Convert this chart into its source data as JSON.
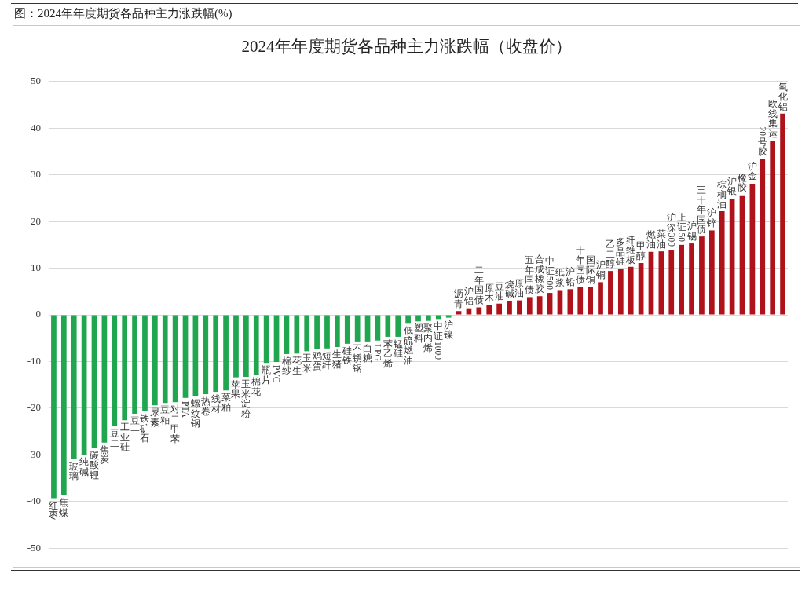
{
  "chart_data": {
    "type": "bar",
    "title": "2024年年度期货各品种主力涨跌幅（收盘价）",
    "annotations": [
      "图：2024年年度期货各品种主力涨跌幅(%)"
    ],
    "categories": [
      "红枣",
      "焦煤",
      "玻璃",
      "纯碱",
      "碳酸锂",
      "焦炭",
      "豆二",
      "工业硅",
      "豆一",
      "铁矿石",
      "尿素",
      "豆粕",
      "对二甲苯",
      "PTA",
      "螺纹钢",
      "热卷",
      "线材",
      "菜粕",
      "苹果",
      "玉米淀粉",
      "棉花",
      "瓶片",
      "PVC",
      "棉纱",
      "花生",
      "玉米",
      "鸡蛋",
      "短纤",
      "生猪",
      "硅铁",
      "不锈钢",
      "白糖",
      "LPG",
      "苯乙烯",
      "锰硅",
      "低硫燃油",
      "塑料",
      "聚丙烯",
      "中证1000",
      "沪镍",
      "沥青",
      "沪铝",
      "二年国债",
      "原木",
      "豆油",
      "烧碱",
      "原油",
      "五年国债",
      "合成橡胶",
      "中证500",
      "纸浆",
      "沪铅",
      "十年国债",
      "国际铜",
      "沪铜",
      "乙二醇",
      "多晶硅",
      "纤维板",
      "甲醇",
      "燃油",
      "菜油",
      "沪深300",
      "上证50",
      "沪锡",
      "三十年国债",
      "沪锌",
      "棕榈油",
      "沪银",
      "橡胶",
      "沪金",
      "20号胶",
      "欧线集运",
      "氧化铝"
    ],
    "values": [
      -39.3,
      -38.7,
      -30.9,
      -30.0,
      -28.6,
      -27.4,
      -23.9,
      -22.6,
      -21.2,
      -20.7,
      -19.4,
      -18.9,
      -18.7,
      -17.8,
      -17.5,
      -17.0,
      -16.5,
      -16.2,
      -13.4,
      -13.3,
      -12.8,
      -10.3,
      -10.1,
      -8.4,
      -8.3,
      -7.8,
      -7.3,
      -7.2,
      -6.9,
      -6.2,
      -5.7,
      -5.7,
      -5.5,
      -4.7,
      -4.7,
      -1.9,
      -1.4,
      -1.3,
      -0.9,
      -0.6,
      0.8,
      1.4,
      1.6,
      2.1,
      2.4,
      2.9,
      3.1,
      3.8,
      4.0,
      4.7,
      5.3,
      5.5,
      5.9,
      6.0,
      7.0,
      9.4,
      9.9,
      10.3,
      11.1,
      13.5,
      13.6,
      13.9,
      15.0,
      15.3,
      16.8,
      18.1,
      22.2,
      24.9,
      25.6,
      28.1,
      33.4,
      37.3,
      43.1
    ],
    "colors": [
      "#1fa64f",
      "#1fa64f",
      "#1fa64f",
      "#1fa64f",
      "#1fa64f",
      "#1fa64f",
      "#1fa64f",
      "#1fa64f",
      "#1fa64f",
      "#1fa64f",
      "#1fa64f",
      "#1fa64f",
      "#1fa64f",
      "#1fa64f",
      "#1fa64f",
      "#1fa64f",
      "#1fa64f",
      "#1fa64f",
      "#1fa64f",
      "#1fa64f",
      "#1fa64f",
      "#1fa64f",
      "#1fa64f",
      "#1fa64f",
      "#1fa64f",
      "#1fa64f",
      "#1fa64f",
      "#1fa64f",
      "#1fa64f",
      "#1fa64f",
      "#1fa64f",
      "#1fa64f",
      "#1fa64f",
      "#1fa64f",
      "#1fa64f",
      "#1fa64f",
      "#1fa64f",
      "#1fa64f",
      "#1fa64f",
      "#1fa64f",
      "#b0121b",
      "#b0121b",
      "#b0121b",
      "#b0121b",
      "#b0121b",
      "#b0121b",
      "#b0121b",
      "#b0121b",
      "#b0121b",
      "#b0121b",
      "#b0121b",
      "#b0121b",
      "#b0121b",
      "#b0121b",
      "#b0121b",
      "#b0121b",
      "#b0121b",
      "#b0121b",
      "#b0121b",
      "#b0121b",
      "#b0121b",
      "#b0121b",
      "#b0121b",
      "#b0121b",
      "#b0121b",
      "#b0121b",
      "#b0121b",
      "#b0121b",
      "#b0121b",
      "#b0121b",
      "#b0121b",
      "#b0121b",
      "#b0121b"
    ],
    "ylim": [
      -50,
      50
    ],
    "yticks": [
      -50,
      -40,
      -30,
      -20,
      -10,
      0,
      10,
      20,
      30,
      40,
      50
    ],
    "grid": "y"
  }
}
